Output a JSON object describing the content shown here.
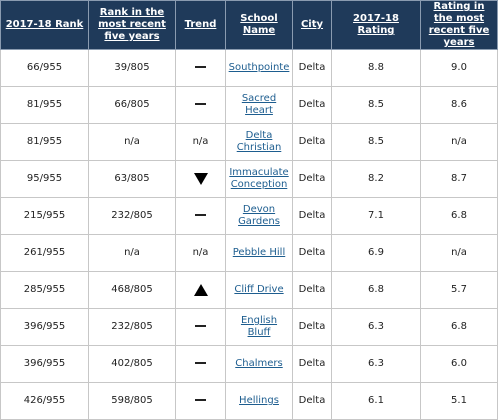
{
  "header": {
    "rank": "2017-18 Rank",
    "rank_recent": "Rank in the most recent five years",
    "trend": "Trend",
    "school": "School Name",
    "city": "City",
    "rating": "2017-18 Rating",
    "rating_recent": "Rating in the most recent five years"
  },
  "rows": [
    {
      "rank": "66/955",
      "rank_recent": "39/805",
      "trend": "flat",
      "trend_text": "",
      "school": "Southpointe",
      "city": "Delta",
      "rating": "8.8",
      "rating_recent": "9.0"
    },
    {
      "rank": "81/955",
      "rank_recent": "66/805",
      "trend": "flat",
      "trend_text": "",
      "school": "Sacred Heart",
      "city": "Delta",
      "rating": "8.5",
      "rating_recent": "8.6"
    },
    {
      "rank": "81/955",
      "rank_recent": "n/a",
      "trend": "na",
      "trend_text": "n/a",
      "school": "Delta Christian",
      "city": "Delta",
      "rating": "8.5",
      "rating_recent": "n/a"
    },
    {
      "rank": "95/955",
      "rank_recent": "63/805",
      "trend": "down",
      "trend_text": "",
      "school": "Immaculate Conception",
      "city": "Delta",
      "rating": "8.2",
      "rating_recent": "8.7"
    },
    {
      "rank": "215/955",
      "rank_recent": "232/805",
      "trend": "flat",
      "trend_text": "",
      "school": "Devon Gardens",
      "city": "Delta",
      "rating": "7.1",
      "rating_recent": "6.8"
    },
    {
      "rank": "261/955",
      "rank_recent": "n/a",
      "trend": "na",
      "trend_text": "n/a",
      "school": "Pebble Hill",
      "city": "Delta",
      "rating": "6.9",
      "rating_recent": "n/a"
    },
    {
      "rank": "285/955",
      "rank_recent": "468/805",
      "trend": "up",
      "trend_text": "",
      "school": "Cliff Drive",
      "city": "Delta",
      "rating": "6.8",
      "rating_recent": "5.7"
    },
    {
      "rank": "396/955",
      "rank_recent": "232/805",
      "trend": "flat",
      "trend_text": "",
      "school": "English Bluff",
      "city": "Delta",
      "rating": "6.3",
      "rating_recent": "6.8"
    },
    {
      "rank": "396/955",
      "rank_recent": "402/805",
      "trend": "flat",
      "trend_text": "",
      "school": "Chalmers",
      "city": "Delta",
      "rating": "6.3",
      "rating_recent": "6.0"
    },
    {
      "rank": "426/955",
      "rank_recent": "598/805",
      "trend": "flat",
      "trend_text": "",
      "school": "Hellings",
      "city": "Delta",
      "rating": "6.1",
      "rating_recent": "5.1"
    }
  ],
  "colors": {
    "header_bg": "#1f3a5a",
    "link": "#1d5d8f"
  }
}
